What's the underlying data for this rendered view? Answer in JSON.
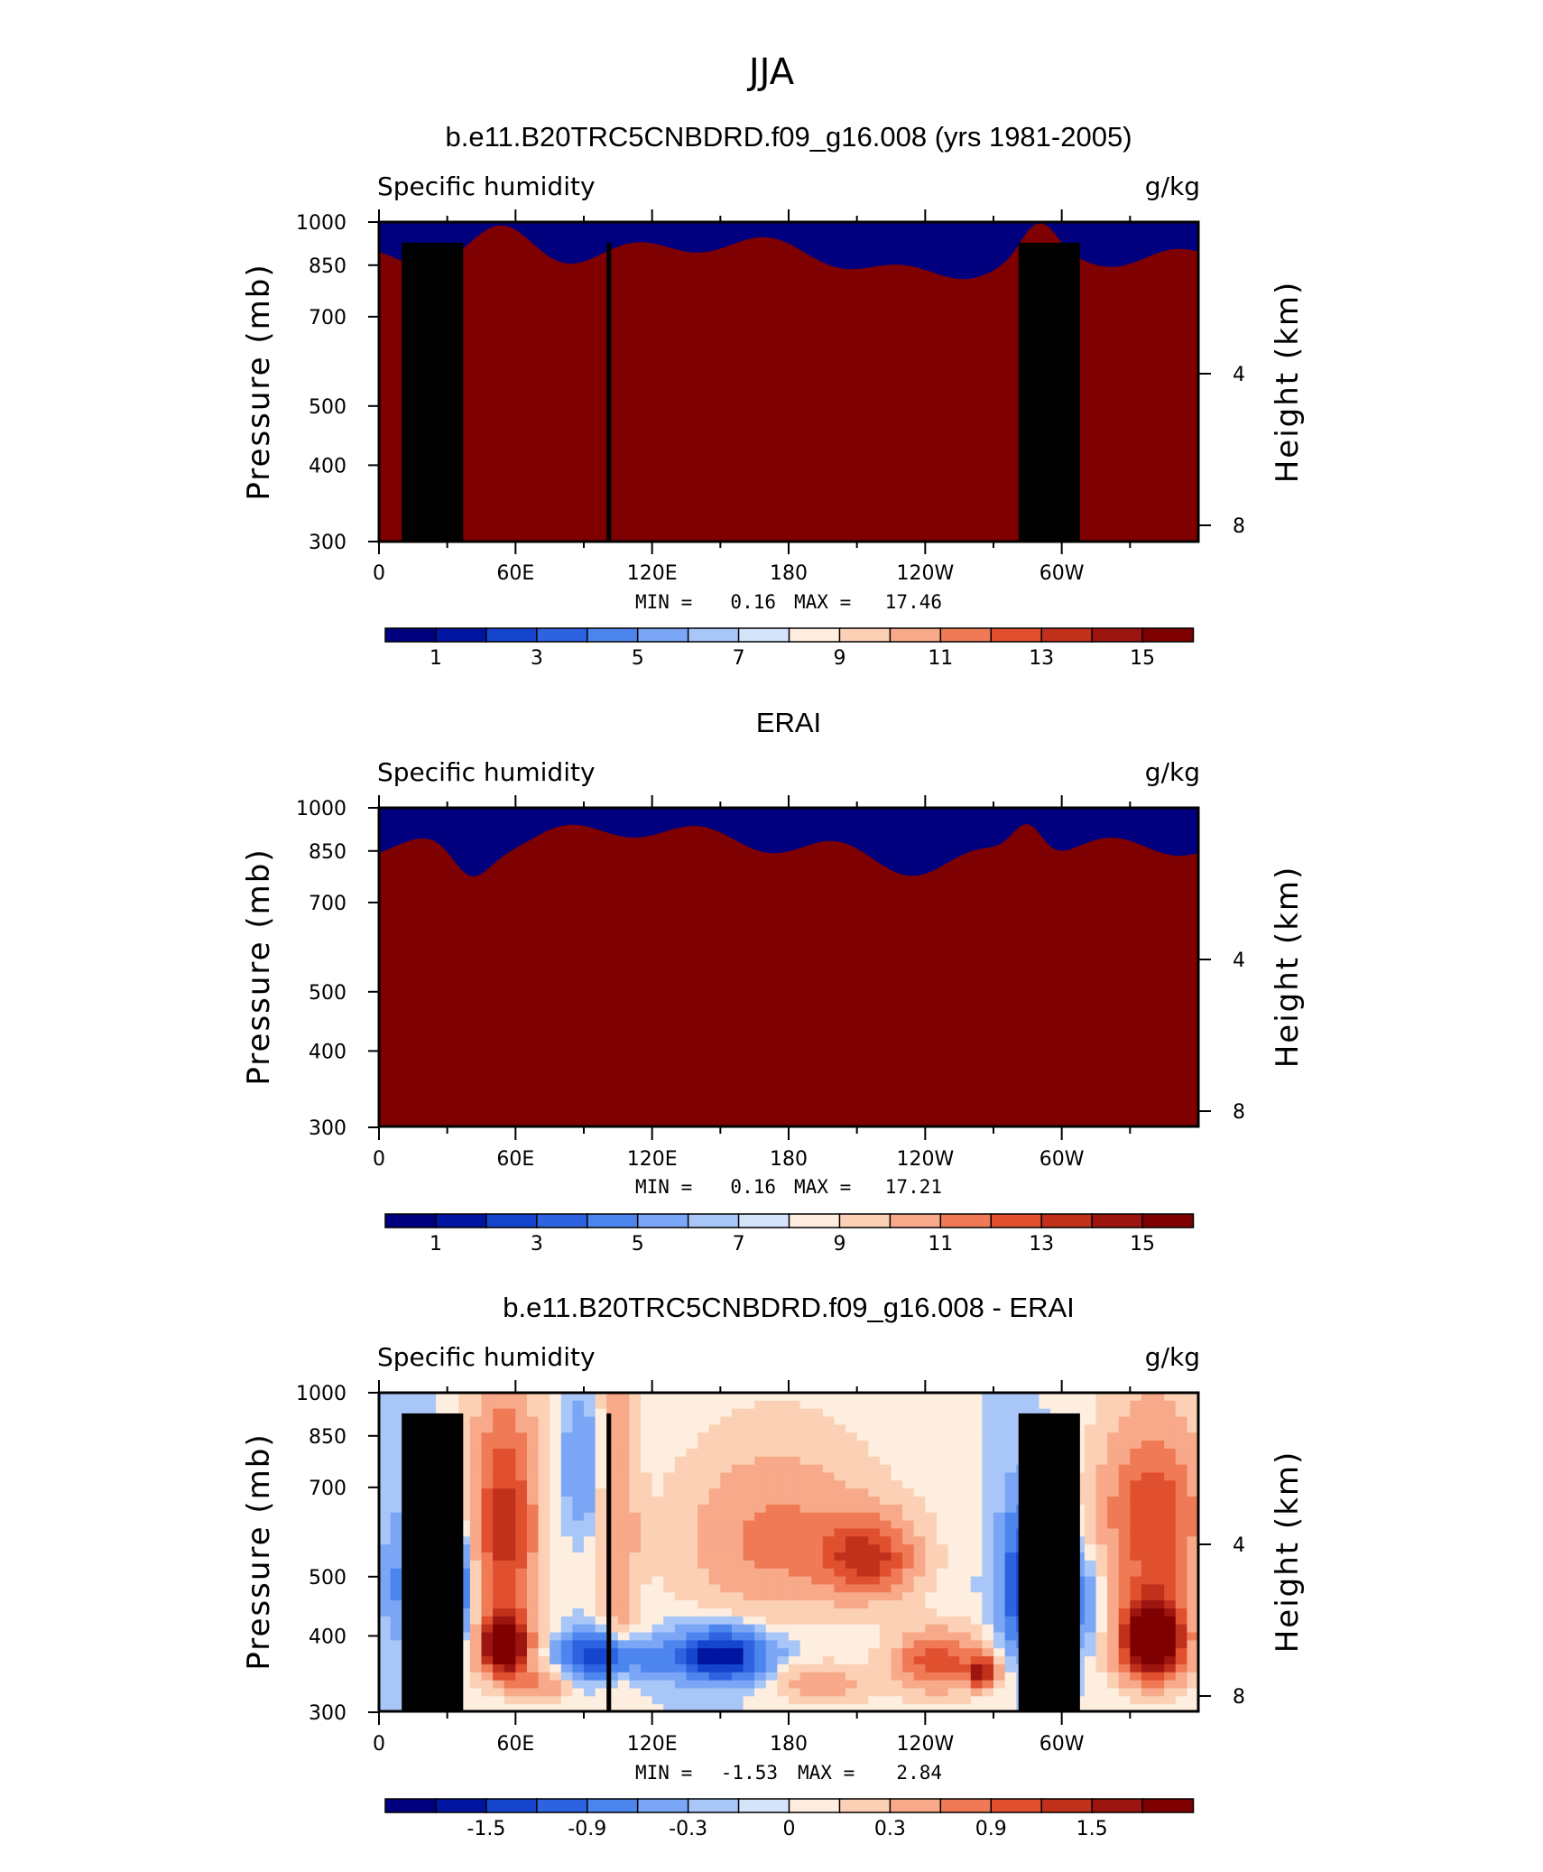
{
  "figure": {
    "title": "JJA"
  },
  "chart_data": [
    {
      "type": "heatmap",
      "title": "b.e11.B20TRC5CNBDRD.f09_g16.008 (yrs 1981-2005)",
      "left_string": "Specific humidity",
      "right_string": "g/kg",
      "ylabel": "Pressure (mb)",
      "ylabel_right": "Height (km)",
      "x_ticks": [
        "0",
        "60E",
        "120E",
        "180",
        "120W",
        "60W"
      ],
      "y_ticks": [
        "300",
        "400",
        "500",
        "700",
        "850",
        "1000"
      ],
      "y_ticks_right": [
        "8",
        "4"
      ],
      "ylim": [
        1000,
        300
      ],
      "xlim": [
        0,
        360
      ],
      "min_label": "MIN =",
      "min_value": "0.16",
      "max_label": "MAX =",
      "max_value": "17.46",
      "colorbar_labels": [
        "1",
        "3",
        "5",
        "7",
        "9",
        "11",
        "13",
        "15"
      ],
      "colormap": "blue-white-red"
    },
    {
      "type": "heatmap",
      "title": "ERAI",
      "left_string": "Specific humidity",
      "right_string": "g/kg",
      "ylabel": "Pressure (mb)",
      "ylabel_right": "Height (km)",
      "x_ticks": [
        "0",
        "60E",
        "120E",
        "180",
        "120W",
        "60W"
      ],
      "y_ticks": [
        "300",
        "400",
        "500",
        "700",
        "850",
        "1000"
      ],
      "y_ticks_right": [
        "8",
        "4"
      ],
      "ylim": [
        1000,
        300
      ],
      "xlim": [
        0,
        360
      ],
      "min_label": "MIN =",
      "min_value": "0.16",
      "max_label": "MAX =",
      "max_value": "17.21",
      "colorbar_labels": [
        "1",
        "3",
        "5",
        "7",
        "9",
        "11",
        "13",
        "15"
      ],
      "colormap": "blue-white-red"
    },
    {
      "type": "heatmap",
      "title": "b.e11.B20TRC5CNBDRD.f09_g16.008 - ERAI",
      "left_string": "Specific humidity",
      "right_string": "g/kg",
      "ylabel": "Pressure (mb)",
      "ylabel_right": "Height (km)",
      "x_ticks": [
        "0",
        "60E",
        "120E",
        "180",
        "120W",
        "60W"
      ],
      "y_ticks": [
        "300",
        "400",
        "500",
        "700",
        "850",
        "1000"
      ],
      "y_ticks_right": [
        "8",
        "4"
      ],
      "ylim": [
        1000,
        300
      ],
      "xlim": [
        0,
        360
      ],
      "min_label": "MIN =",
      "min_value": "-1.53",
      "max_label": "MAX =",
      "max_value": "2.84",
      "colorbar_labels": [
        "-1.5",
        "-0.9",
        "-0.3",
        "0",
        "0.3",
        "0.9",
        "1.5"
      ],
      "colormap": "blue-white-red"
    }
  ],
  "palette": [
    "#00007f",
    "#0014a0",
    "#1445cc",
    "#2d63e0",
    "#4d85ef",
    "#7aa6f5",
    "#a8c6f8",
    "#d4e4fb",
    "#fdeee0",
    "#fcd0b4",
    "#f7a98a",
    "#ef7a55",
    "#e0502f",
    "#c0301b",
    "#9c1510",
    "#7f0000"
  ]
}
